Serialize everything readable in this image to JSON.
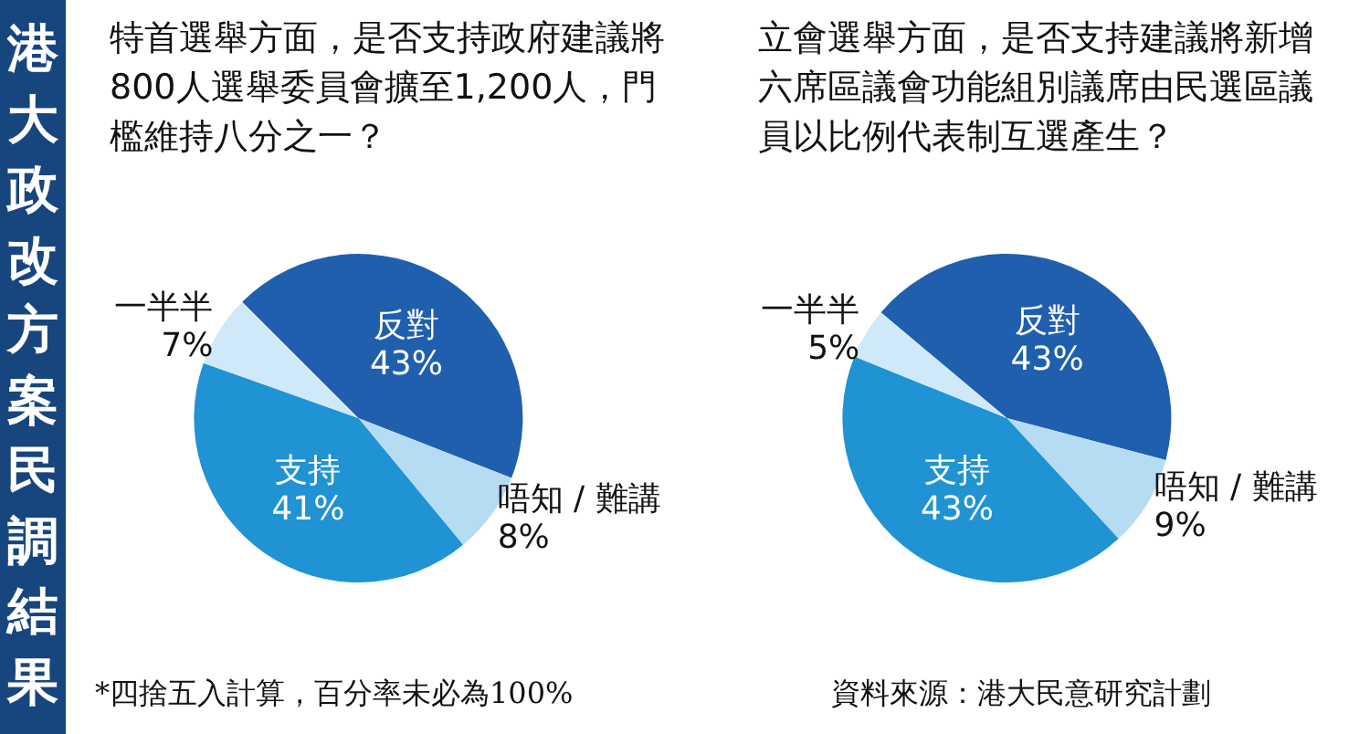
{
  "chart_data": [
    {
      "type": "pie",
      "title": "特首選舉方面，是否支持政府建議將800人選舉委員會擴至1,200人，門檻維持八分之一？",
      "annotations": [
        "港大政改方案民調結果",
        "*四捨五入計算，百分率未必為100%"
      ],
      "categories": [
        "反對",
        "唔知 / 難講",
        "支持",
        "一半半"
      ],
      "values": [
        43,
        8,
        41,
        7
      ],
      "value_labels": [
        "43%",
        "8%",
        "41%",
        "7%"
      ],
      "colors": [
        "#1f5fae",
        "#b5dcf2",
        "#1f93d3",
        "#cfe9f8"
      ],
      "legend": false
    },
    {
      "type": "pie",
      "title": "立會選舉方面，是否支持建議將新增六席區議會功能組別議席由民選區議員以比例代表制互選產生？",
      "annotations": [
        "資料來源：港大民意研究計劃"
      ],
      "categories": [
        "反對",
        "唔知 / 難講",
        "支持",
        "一半半"
      ],
      "values": [
        43,
        9,
        43,
        5
      ],
      "value_labels": [
        "43%",
        "9%",
        "43%",
        "5%"
      ],
      "colors": [
        "#1f5fae",
        "#b5dcf2",
        "#1f93d3",
        "#cfe9f8"
      ],
      "legend": false
    }
  ]
}
